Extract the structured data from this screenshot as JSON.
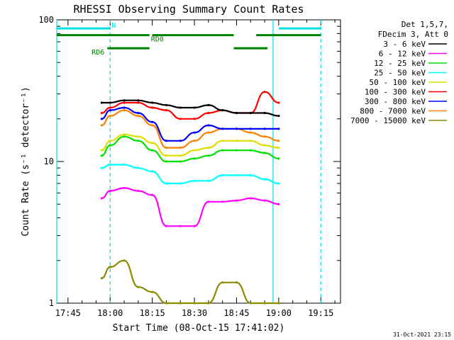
{
  "chart_data": {
    "type": "line",
    "title": "RHESSI Observing Summary Count Rates",
    "xlabel": "Start Time (08-Oct-15 17:41:02)",
    "ylabel": "Count Rate (s⁻¹ detector⁻¹)",
    "y_scale": "log",
    "ylim": [
      1,
      100
    ],
    "xlim": [
      "17:41",
      "19:22"
    ],
    "x_ticks": [
      "17:45",
      "18:00",
      "18:15",
      "18:30",
      "18:45",
      "19:00",
      "19:15"
    ],
    "y_ticks": [
      "1",
      "10",
      "100"
    ],
    "legend_header": [
      "Det 1,5,7,",
      "FDecim 3, Att 0"
    ],
    "legend_position": "top-right",
    "footer": "31-Oct-2021 23:15",
    "colors": {
      "3 - 6 keV": "#000000",
      "6 - 12 keV": "#ff00ff",
      "12 - 25 keV": "#00e000",
      "25 - 50 keV": "#00ffff",
      "50 - 100 keV": "#dddd00",
      "100 - 300 keV": "#ff0000",
      "300 - 800 keV": "#0000ff",
      "800 - 7000 keV": "#ff8000",
      "7000 - 15000 keV": "#8b8b00"
    },
    "x": [
      "17:57",
      "18:00",
      "18:05",
      "18:10",
      "18:15",
      "18:20",
      "18:25",
      "18:30",
      "18:35",
      "18:40",
      "18:45",
      "18:50",
      "18:55",
      "19:00"
    ],
    "series": [
      {
        "name": "3 - 6 keV",
        "values": [
          26,
          26,
          27,
          27,
          26,
          25,
          24,
          24,
          25,
          23,
          22,
          22,
          22,
          21
        ]
      },
      {
        "name": "6 - 12 keV",
        "values": [
          5.5,
          6.2,
          6.5,
          6.2,
          5.8,
          3.5,
          3.5,
          3.5,
          5.2,
          5.2,
          5.3,
          5.5,
          5.3,
          5.0
        ]
      },
      {
        "name": "12 - 25 keV",
        "values": [
          11,
          13,
          15,
          14,
          12,
          10,
          10,
          10.5,
          11,
          12,
          12,
          12,
          11.5,
          10.5
        ]
      },
      {
        "name": "25 - 50 keV",
        "values": [
          9,
          9.5,
          9.5,
          9,
          8.5,
          7,
          7,
          7.3,
          7.3,
          8,
          8,
          8,
          7.5,
          7
        ]
      },
      {
        "name": "50 - 100 keV",
        "values": [
          12,
          14,
          15.5,
          15,
          13.5,
          11,
          11,
          12,
          12.5,
          14,
          14,
          14,
          13,
          12.5
        ]
      },
      {
        "name": "100 - 300 keV",
        "values": [
          22,
          24,
          26,
          26,
          24,
          23,
          20,
          20,
          22,
          23,
          22,
          22,
          31,
          26
        ]
      },
      {
        "name": "300 - 800 keV",
        "values": [
          20,
          23,
          24,
          22,
          19,
          14,
          14,
          16,
          18,
          17,
          17,
          17,
          17,
          17
        ]
      },
      {
        "name": "800 - 7000 keV",
        "values": [
          18,
          21,
          23,
          21,
          18,
          12.5,
          12.5,
          14,
          16,
          17,
          17,
          16,
          15,
          14
        ]
      },
      {
        "name": "7000 - 15000 keV",
        "values": [
          1.5,
          1.8,
          2,
          1.3,
          1.2,
          1.0,
          1.0,
          1.0,
          1.0,
          1.4,
          1.4,
          1.0,
          1.0,
          1.0
        ]
      }
    ],
    "segments": [
      {
        "label": "N",
        "color": "#00e0e0",
        "level": 87,
        "spans": [
          [
            "17:41",
            "18:00"
          ],
          [
            "19:00",
            "19:15"
          ]
        ]
      },
      {
        "label": "RD0",
        "color": "#008000",
        "level": 78,
        "spans": [
          [
            "17:41",
            "18:14"
          ],
          [
            "18:15",
            "18:44"
          ],
          [
            "18:52",
            "19:15"
          ]
        ]
      },
      {
        "label": "RD6",
        "color": "#008000",
        "level": 63,
        "spans": [
          [
            "17:59",
            "18:14"
          ],
          [
            "18:44",
            "18:56"
          ]
        ]
      }
    ],
    "vlines": [
      {
        "time": "17:41",
        "style": "solid",
        "color": "#00e0e0"
      },
      {
        "time": "18:00",
        "style": "dashed",
        "color": "#00e0e0"
      },
      {
        "time": "18:58",
        "style": "solid",
        "color": "#00e0e0"
      },
      {
        "time": "19:15",
        "style": "dashed",
        "color": "#00e0e0"
      }
    ]
  }
}
